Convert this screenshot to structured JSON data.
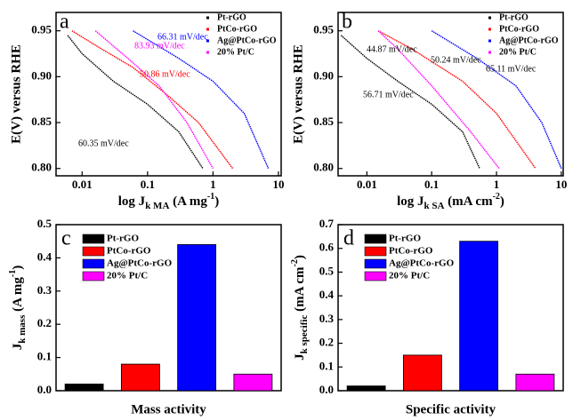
{
  "chart_data": [
    {
      "type": "line",
      "panel": "a",
      "ylabel": "E(V) versus RHE",
      "xlabel": [
        "log J",
        "k MA",
        " (A mg",
        "-1",
        ")"
      ],
      "xlog": true,
      "xlim": [
        0.004,
        11
      ],
      "xticks": [
        0.01,
        0.1,
        1,
        10
      ],
      "ylim": [
        0.792,
        0.97
      ],
      "yticks": [
        {
          "value": 0.8,
          "label": "0.80"
        },
        {
          "value": 0.85,
          "label": "0.85"
        },
        {
          "value": 0.9,
          "label": "0.90"
        },
        {
          "value": 0.95,
          "label": "0.95"
        }
      ],
      "series": [
        {
          "name": "Pt-rGO",
          "color": "#000000",
          "x": [
            0.006,
            0.01,
            0.03,
            0.1,
            0.3,
            0.7
          ],
          "values": [
            0.945,
            0.925,
            0.895,
            0.87,
            0.84,
            0.8
          ]
        },
        {
          "name": "PtCo-rGO",
          "color": "#ff0000",
          "x": [
            0.007,
            0.02,
            0.06,
            0.2,
            0.6,
            2
          ],
          "values": [
            0.95,
            0.93,
            0.91,
            0.88,
            0.85,
            0.8
          ]
        },
        {
          "name": "Ag@PtCo-rGO",
          "color": "#0000ff",
          "x": [
            0.06,
            0.3,
            1,
            3,
            7
          ],
          "values": [
            0.95,
            0.92,
            0.895,
            0.86,
            0.8
          ]
        },
        {
          "name": "20% Pt/C",
          "color": "#ff00ff",
          "x": [
            0.016,
            0.05,
            0.15,
            0.4,
            1
          ],
          "values": [
            0.95,
            0.92,
            0.89,
            0.85,
            0.8
          ]
        }
      ],
      "annotations": [
        {
          "text": "60.35 mV/dec",
          "color": "#000000"
        },
        {
          "text": "83.93 mV/dec",
          "color": "#ff00ff"
        },
        {
          "text": "66.31 mV/dec",
          "color": "#0000ff"
        },
        {
          "text": "50.86 mV/dec",
          "color": "#ff0000"
        }
      ]
    },
    {
      "type": "line",
      "panel": "b",
      "ylabel": "E(V) versus RHE",
      "xlabel": [
        "log J",
        "k SA",
        " (mA cm",
        "-2",
        ")"
      ],
      "xlog": true,
      "xlim": [
        0.0036,
        10.7
      ],
      "xticks": [
        0.01,
        0.1,
        1,
        10
      ],
      "ylim": [
        0.792,
        0.97
      ],
      "yticks": [
        {
          "value": 0.8,
          "label": "0.80"
        },
        {
          "value": 0.85,
          "label": "0.85"
        },
        {
          "value": 0.9,
          "label": "0.90"
        },
        {
          "value": 0.95,
          "label": "0.95"
        }
      ],
      "series": [
        {
          "name": "Pt-rGO",
          "color": "#000000",
          "x": [
            0.004,
            0.01,
            0.03,
            0.1,
            0.3,
            0.55
          ],
          "values": [
            0.945,
            0.92,
            0.895,
            0.87,
            0.84,
            0.8
          ]
        },
        {
          "name": "PtCo-rGO",
          "color": "#ff0000",
          "x": [
            0.015,
            0.05,
            0.3,
            1,
            4
          ],
          "values": [
            0.95,
            0.93,
            0.895,
            0.86,
            0.8
          ]
        },
        {
          "name": "Ag@PtCo-rGO",
          "color": "#0000ff",
          "x": [
            0.1,
            0.5,
            2,
            5,
            10
          ],
          "values": [
            0.95,
            0.92,
            0.89,
            0.85,
            0.8
          ]
        },
        {
          "name": "20% Pt/C",
          "color": "#ff00ff",
          "x": [
            0.015,
            0.03,
            0.1,
            0.4,
            1.1
          ],
          "values": [
            0.95,
            0.93,
            0.89,
            0.84,
            0.8
          ]
        }
      ],
      "annotations": [
        {
          "text": "44.87 mV/dec",
          "color": "#000000"
        },
        {
          "text": "50.24 mV/dec",
          "color": "#000000"
        },
        {
          "text": "65.11 mV/dec",
          "color": "#000000"
        },
        {
          "text": "56.71 mV/dec",
          "color": "#000000"
        }
      ]
    },
    {
      "type": "bar",
      "panel": "c",
      "ylabel": [
        "J",
        "k mass",
        " (A mg",
        "-1",
        ")"
      ],
      "xlabel": "Mass activity",
      "categories": [
        "Pt-rGO",
        "PtCo-rGO",
        "Ag@PtCo-rGO",
        "20% Pt/C"
      ],
      "values": [
        0.02,
        0.08,
        0.44,
        0.05
      ],
      "colors": [
        "#000000",
        "#ff0000",
        "#0000ff",
        "#ff00ff"
      ],
      "ylim": [
        0,
        0.5
      ],
      "yticks": [
        {
          "value": 0,
          "label": "0.0"
        },
        0.1,
        0.2,
        0.3,
        0.4,
        0.5
      ]
    },
    {
      "type": "bar",
      "panel": "d",
      "ylabel": [
        "J",
        "k specific",
        " (mA cm",
        "-2",
        ")"
      ],
      "xlabel": "Specific activity",
      "categories": [
        "Pt-rGO",
        "PtCo-rGO",
        "Ag@PtCo-rGO",
        "20% Pt/C"
      ],
      "values": [
        0.02,
        0.15,
        0.63,
        0.07
      ],
      "colors": [
        "#000000",
        "#ff0000",
        "#0000ff",
        "#ff00ff"
      ],
      "ylim": [
        0,
        0.7
      ],
      "yticks": [
        {
          "value": 0,
          "label": "0.0"
        },
        0.1,
        0.2,
        0.3,
        0.4,
        0.5,
        0.6,
        0.7
      ]
    }
  ]
}
